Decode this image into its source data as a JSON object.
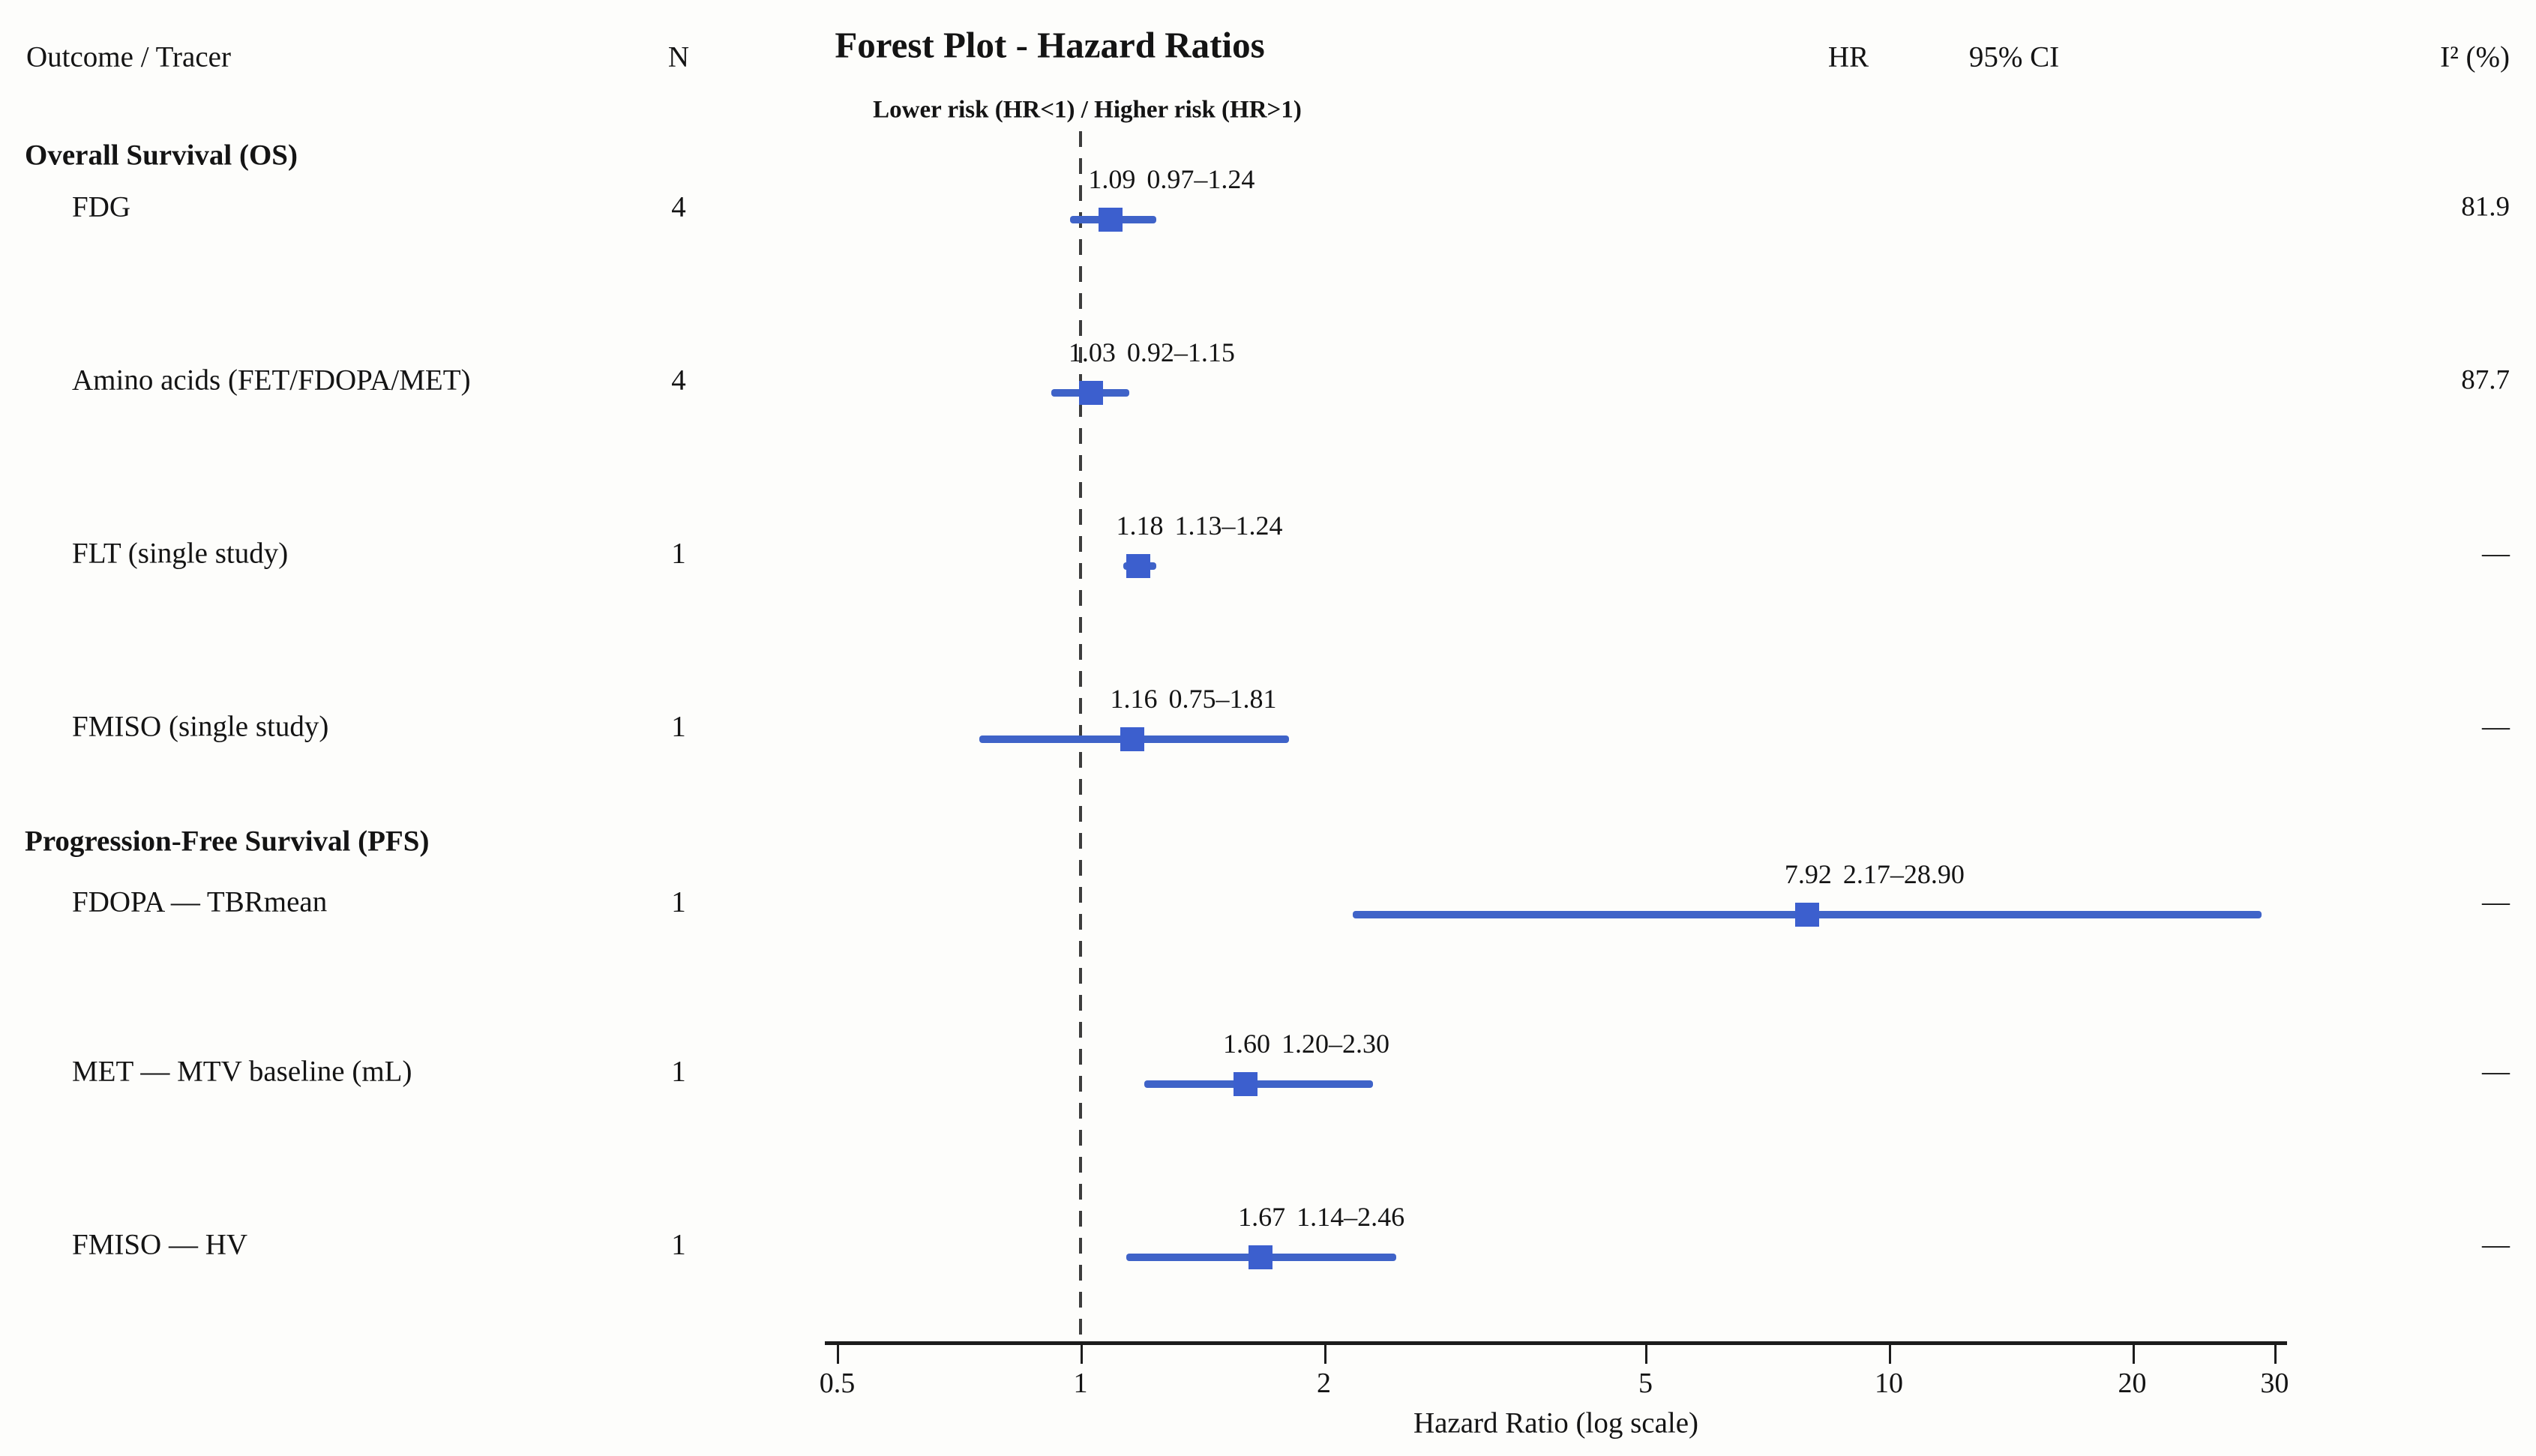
{
  "header": {
    "outcome_col": "Outcome / Tracer",
    "n_col": "N",
    "hr_col": "HR",
    "ci_col": "95% CI",
    "i2_col": "I² (%)"
  },
  "title": "Forest Plot - Hazard Ratios",
  "subtitle": "Lower risk (HR<1) / Higher risk (HR>1)",
  "colors": {
    "marker_blue": "#3c5fce",
    "ci_blue": "#3f63c8",
    "reference_gray": "#3d3d3d",
    "text": "#141414"
  },
  "chart_data": {
    "type": "forest",
    "x_scale": "log10",
    "x_range": [
      0.5,
      30
    ],
    "x_ticks": [
      0.5,
      1,
      2,
      5,
      10,
      20,
      30
    ],
    "x_tick_labels": [
      "0.5",
      "1",
      "2",
      "5",
      "10",
      "20",
      "30"
    ],
    "reference_line": 1,
    "xlabel": "Hazard Ratio (log scale)",
    "groups": [
      {
        "section": "Overall Survival (OS)",
        "rows": [
          {
            "label": "FDG",
            "n": "4",
            "hr": 1.09,
            "ci_low": 0.97,
            "ci_high": 1.24,
            "hr_text": "1.09",
            "ci_text": "0.97–1.24",
            "i2": "81.9"
          },
          {
            "label": "Amino acids (FET/FDOPA/MET)",
            "n": "4",
            "hr": 1.03,
            "ci_low": 0.92,
            "ci_high": 1.15,
            "hr_text": "1.03",
            "ci_text": "0.92–1.15",
            "i2": "87.7"
          },
          {
            "label": "FLT (single study)",
            "n": "1",
            "hr": 1.18,
            "ci_low": 1.13,
            "ci_high": 1.24,
            "hr_text": "1.18",
            "ci_text": "1.13–1.24",
            "i2": "—"
          },
          {
            "label": "FMISO (single study)",
            "n": "1",
            "hr": 1.16,
            "ci_low": 0.75,
            "ci_high": 1.81,
            "hr_text": "1.16",
            "ci_text": "0.75–1.81",
            "i2": "—"
          }
        ]
      },
      {
        "section": "Progression-Free Survival (PFS)",
        "rows": [
          {
            "label": "FDOPA — TBRmean",
            "n": "1",
            "hr": 7.92,
            "ci_low": 2.17,
            "ci_high": 28.9,
            "hr_text": "7.92",
            "ci_text": "2.17–28.90",
            "i2": "—"
          },
          {
            "label": "MET — MTV baseline (mL)",
            "n": "1",
            "hr": 1.6,
            "ci_low": 1.2,
            "ci_high": 2.3,
            "hr_text": "1.60",
            "ci_text": "1.20–2.30",
            "i2": "—"
          },
          {
            "label": "FMISO — HV",
            "n": "1",
            "hr": 1.67,
            "ci_low": 1.14,
            "ci_high": 2.46,
            "hr_text": "1.67",
            "ci_text": "1.14–2.46",
            "i2": "—"
          }
        ]
      }
    ]
  }
}
